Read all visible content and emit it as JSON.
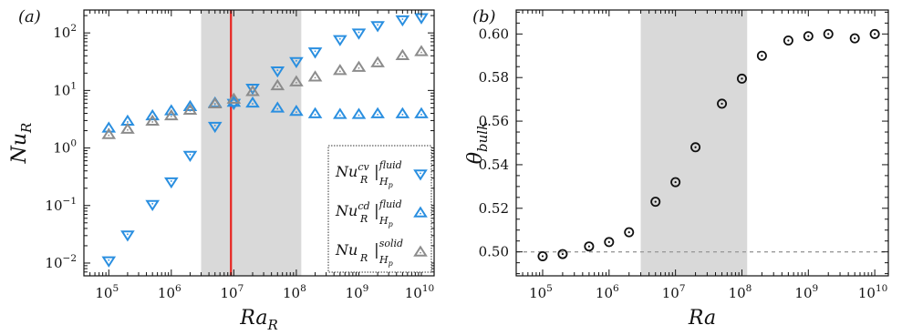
{
  "chart_data": [
    {
      "panel_label": "(a)",
      "type": "scatter",
      "xscale": "log",
      "yscale": "log",
      "xlim": [
        40000,
        16000000000
      ],
      "ylim": [
        0.006,
        250
      ],
      "xlabel": {
        "base": "Ra",
        "sub": "R"
      },
      "ylabel": {
        "base": "Nu",
        "sub": "R"
      },
      "x_ticks": [
        {
          "value": 100000,
          "base": "10",
          "exp": "5"
        },
        {
          "value": 1000000,
          "base": "10",
          "exp": "6"
        },
        {
          "value": 10000000,
          "base": "10",
          "exp": "7"
        },
        {
          "value": 100000000,
          "base": "10",
          "exp": "8"
        },
        {
          "value": 1000000000,
          "base": "10",
          "exp": "9"
        },
        {
          "value": 10000000000,
          "base": "10",
          "exp": "10"
        }
      ],
      "y_ticks": [
        {
          "value": 0.01,
          "base": "10",
          "exp": "−2"
        },
        {
          "value": 0.1,
          "base": "10",
          "exp": "−1"
        },
        {
          "value": 1,
          "text": "10⁰",
          "base": "10",
          "exp": "0"
        },
        {
          "value": 10,
          "base": "10",
          "exp": "1"
        },
        {
          "value": 100,
          "base": "10",
          "exp": "2"
        }
      ],
      "shaded_band": {
        "x_range": [
          3000000,
          120000000
        ],
        "color": "#d9d9d9"
      },
      "vertical_line": {
        "x": 9000000,
        "color": "#e8231f"
      },
      "legend": {
        "position": "lower-right"
      },
      "series": [
        {
          "name": {
            "base": "Nu",
            "sup": "cv",
            "sub": "R",
            "bar_sup": "fluid",
            "bar_sub": "H",
            "bar_sub2": "p"
          },
          "marker": "triangle-down",
          "color": "#2a8fe0",
          "x": [
            100000,
            200000,
            500000,
            1000000,
            2000000,
            5000000,
            10000000,
            20000000,
            50000000,
            100000000,
            200000000,
            500000000,
            1000000000,
            2000000000,
            5000000000,
            10000000000
          ],
          "y": [
            0.011,
            0.031,
            0.105,
            0.26,
            0.75,
            2.4,
            6.0,
            11.0,
            22.0,
            32.0,
            47.0,
            77.0,
            100.0,
            135.0,
            170.0,
            185.0
          ]
        },
        {
          "name": {
            "base": "Nu",
            "sup": "cd",
            "sub": "R",
            "bar_sup": "fluid",
            "bar_sub": "H",
            "bar_sub2": "p"
          },
          "marker": "triangle-up",
          "color": "#2a8fe0",
          "x": [
            100000,
            200000,
            500000,
            1000000,
            2000000,
            5000000,
            10000000,
            20000000,
            50000000,
            100000000,
            200000000,
            500000000,
            1000000000,
            2000000000,
            5000000000,
            10000000000
          ],
          "y": [
            2.2,
            2.9,
            3.6,
            4.4,
            5.2,
            6.0,
            6.2,
            6.0,
            4.9,
            4.3,
            3.9,
            3.8,
            3.8,
            3.9,
            3.9,
            3.9
          ]
        },
        {
          "name": {
            "base": "Nu",
            "sup": "",
            "sub": "R",
            "bar_sup": "solid",
            "bar_sub": "H",
            "bar_sub2": "p"
          },
          "marker": "triangle-up",
          "color": "#8c8c8c",
          "x": [
            100000,
            200000,
            500000,
            1000000,
            2000000,
            5000000,
            10000000,
            20000000,
            50000000,
            100000000,
            200000000,
            500000000,
            1000000000,
            2000000000,
            5000000000,
            10000000000
          ],
          "y": [
            1.7,
            2.1,
            2.9,
            3.6,
            4.5,
            5.8,
            7.0,
            9.5,
            12.0,
            14.0,
            17.0,
            22.0,
            25.0,
            30.0,
            40.0,
            47.0
          ]
        }
      ]
    },
    {
      "panel_label": "(b)",
      "type": "scatter",
      "xscale": "log",
      "yscale": "linear",
      "xlim": [
        40000,
        16000000000
      ],
      "ylim": [
        0.489,
        0.611
      ],
      "xlabel": {
        "base": "Ra",
        "sub": ""
      },
      "ylabel": {
        "base": "θ",
        "sub": "bulk"
      },
      "x_ticks": [
        {
          "value": 100000,
          "base": "10",
          "exp": "5"
        },
        {
          "value": 1000000,
          "base": "10",
          "exp": "6"
        },
        {
          "value": 10000000,
          "base": "10",
          "exp": "7"
        },
        {
          "value": 100000000,
          "base": "10",
          "exp": "8"
        },
        {
          "value": 1000000000,
          "base": "10",
          "exp": "9"
        },
        {
          "value": 10000000000,
          "base": "10",
          "exp": "10"
        }
      ],
      "y_ticks": [
        {
          "value": 0.5,
          "text": "0.50"
        },
        {
          "value": 0.52,
          "text": "0.52"
        },
        {
          "value": 0.54,
          "text": "0.54"
        },
        {
          "value": 0.56,
          "text": "0.56"
        },
        {
          "value": 0.58,
          "text": "0.58"
        },
        {
          "value": 0.6,
          "text": "0.60"
        }
      ],
      "shaded_band": {
        "x_range": [
          3000000,
          120000000
        ],
        "color": "#d9d9d9"
      },
      "reference_line": {
        "y": 0.5,
        "style": "dashed",
        "color": "#9a9a9a"
      },
      "series": [
        {
          "marker": "circle-dot",
          "color": "#111111",
          "x": [
            100000,
            200000,
            500000,
            1000000,
            2000000,
            5000000,
            10000000,
            20000000,
            50000000,
            100000000,
            200000000,
            500000000,
            1000000000,
            2000000000,
            5000000000,
            10000000000
          ],
          "y": [
            0.498,
            0.499,
            0.5025,
            0.5045,
            0.509,
            0.523,
            0.532,
            0.548,
            0.568,
            0.5795,
            0.59,
            0.597,
            0.599,
            0.6,
            0.598,
            0.6
          ]
        }
      ]
    }
  ]
}
